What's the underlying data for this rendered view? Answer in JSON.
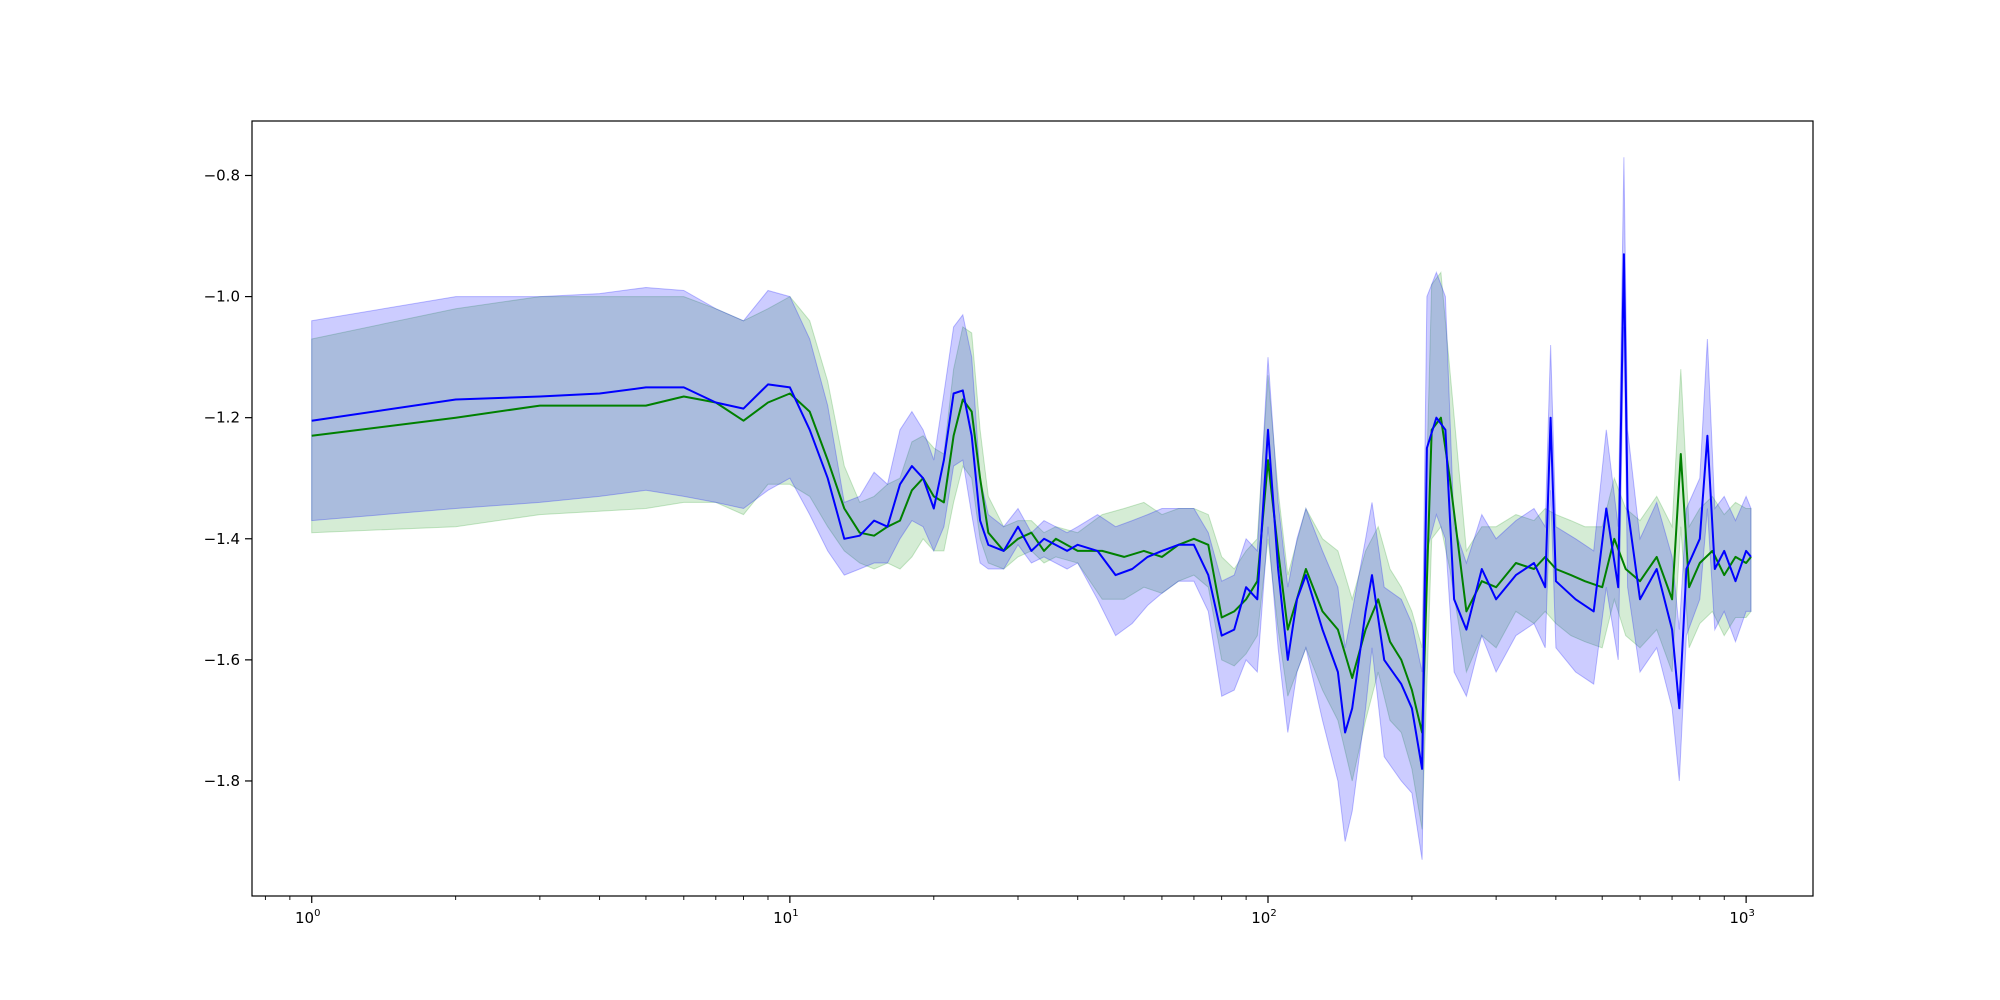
{
  "chart_data": {
    "type": "line",
    "title": "",
    "xlabel": "",
    "ylabel": "",
    "xscale": "log",
    "xlim": [
      0.75,
      1380
    ],
    "ylim": [
      -1.99,
      -0.71
    ],
    "grid": false,
    "legend": "none",
    "x_ticks": [
      {
        "base": "10",
        "exp": "0",
        "value": 1
      },
      {
        "base": "10",
        "exp": "1",
        "value": 10
      },
      {
        "base": "10",
        "exp": "2",
        "value": 100
      },
      {
        "base": "10",
        "exp": "3",
        "value": 1000
      }
    ],
    "y_ticks": [
      {
        "label": "−0.8",
        "value": -0.8
      },
      {
        "label": "−1.0",
        "value": -1.0
      },
      {
        "label": "−1.2",
        "value": -1.2
      },
      {
        "label": "−1.4",
        "value": -1.4
      },
      {
        "label": "−1.6",
        "value": -1.6
      },
      {
        "label": "−1.8",
        "value": -1.8
      }
    ],
    "series": [
      {
        "color": "#008000",
        "band_color": "#2ca02c",
        "points": [
          [
            1,
            -1.23,
            -1.39,
            -1.07
          ],
          [
            2,
            -1.2,
            -1.38,
            -1.02
          ],
          [
            3,
            -1.18,
            -1.36,
            -1.0
          ],
          [
            5,
            -1.18,
            -1.35,
            -1.0
          ],
          [
            6,
            -1.165,
            -1.34,
            -1.0
          ],
          [
            7,
            -1.175,
            -1.34,
            -1.02
          ],
          [
            8,
            -1.205,
            -1.36,
            -1.04
          ],
          [
            9,
            -1.175,
            -1.31,
            -1.02
          ],
          [
            10,
            -1.16,
            -1.31,
            -1.0
          ],
          [
            11,
            -1.19,
            -1.33,
            -1.04
          ],
          [
            12,
            -1.27,
            -1.38,
            -1.14
          ],
          [
            13,
            -1.35,
            -1.42,
            -1.28
          ],
          [
            14,
            -1.39,
            -1.44,
            -1.34
          ],
          [
            15,
            -1.395,
            -1.45,
            -1.33
          ],
          [
            16,
            -1.38,
            -1.44,
            -1.31
          ],
          [
            17,
            -1.37,
            -1.45,
            -1.3
          ],
          [
            18,
            -1.32,
            -1.43,
            -1.24
          ],
          [
            19,
            -1.3,
            -1.4,
            -1.23
          ],
          [
            20,
            -1.33,
            -1.42,
            -1.25
          ],
          [
            21,
            -1.34,
            -1.42,
            -1.26
          ],
          [
            22,
            -1.23,
            -1.34,
            -1.12
          ],
          [
            23,
            -1.17,
            -1.28,
            -1.05
          ],
          [
            24,
            -1.19,
            -1.3,
            -1.06
          ],
          [
            25,
            -1.3,
            -1.4,
            -1.22
          ],
          [
            26,
            -1.39,
            -1.44,
            -1.33
          ],
          [
            28,
            -1.42,
            -1.45,
            -1.38
          ],
          [
            30,
            -1.4,
            -1.43,
            -1.37
          ],
          [
            32,
            -1.39,
            -1.42,
            -1.37
          ],
          [
            34,
            -1.42,
            -1.44,
            -1.39
          ],
          [
            36,
            -1.4,
            -1.43,
            -1.38
          ],
          [
            40,
            -1.42,
            -1.44,
            -1.39
          ],
          [
            45,
            -1.42,
            -1.5,
            -1.36
          ],
          [
            50,
            -1.43,
            -1.5,
            -1.35
          ],
          [
            55,
            -1.42,
            -1.48,
            -1.34
          ],
          [
            60,
            -1.43,
            -1.49,
            -1.36
          ],
          [
            65,
            -1.41,
            -1.47,
            -1.35
          ],
          [
            70,
            -1.4,
            -1.46,
            -1.35
          ],
          [
            75,
            -1.41,
            -1.48,
            -1.36
          ],
          [
            80,
            -1.53,
            -1.6,
            -1.43
          ],
          [
            85,
            -1.52,
            -1.61,
            -1.45
          ],
          [
            90,
            -1.5,
            -1.59,
            -1.42
          ],
          [
            95,
            -1.47,
            -1.56,
            -1.4
          ],
          [
            100,
            -1.27,
            -1.4,
            -1.13
          ],
          [
            105,
            -1.42,
            -1.55,
            -1.32
          ],
          [
            110,
            -1.55,
            -1.66,
            -1.46
          ],
          [
            120,
            -1.45,
            -1.58,
            -1.35
          ],
          [
            130,
            -1.52,
            -1.65,
            -1.4
          ],
          [
            140,
            -1.55,
            -1.7,
            -1.42
          ],
          [
            150,
            -1.63,
            -1.8,
            -1.5
          ],
          [
            160,
            -1.55,
            -1.7,
            -1.42
          ],
          [
            170,
            -1.5,
            -1.62,
            -1.38
          ],
          [
            180,
            -1.57,
            -1.7,
            -1.45
          ],
          [
            190,
            -1.6,
            -1.72,
            -1.48
          ],
          [
            200,
            -1.65,
            -1.78,
            -1.52
          ],
          [
            210,
            -1.72,
            -1.88,
            -1.58
          ],
          [
            220,
            -1.22,
            -1.4,
            -0.98
          ],
          [
            230,
            -1.2,
            -1.38,
            -0.96
          ],
          [
            240,
            -1.3,
            -1.45,
            -1.12
          ],
          [
            260,
            -1.52,
            -1.62,
            -1.42
          ],
          [
            280,
            -1.47,
            -1.56,
            -1.38
          ],
          [
            300,
            -1.48,
            -1.58,
            -1.38
          ],
          [
            330,
            -1.44,
            -1.52,
            -1.36
          ],
          [
            360,
            -1.45,
            -1.54,
            -1.37
          ],
          [
            380,
            -1.43,
            -1.52,
            -1.35
          ],
          [
            400,
            -1.45,
            -1.54,
            -1.36
          ],
          [
            430,
            -1.46,
            -1.56,
            -1.37
          ],
          [
            460,
            -1.47,
            -1.57,
            -1.38
          ],
          [
            500,
            -1.48,
            -1.58,
            -1.38
          ],
          [
            530,
            -1.4,
            -1.5,
            -1.3
          ],
          [
            560,
            -1.45,
            -1.56,
            -1.35
          ],
          [
            600,
            -1.47,
            -1.58,
            -1.37
          ],
          [
            650,
            -1.43,
            -1.55,
            -1.33
          ],
          [
            700,
            -1.5,
            -1.62,
            -1.38
          ],
          [
            730,
            -1.26,
            -1.38,
            -1.12
          ],
          [
            760,
            -1.48,
            -1.58,
            -1.38
          ],
          [
            800,
            -1.44,
            -1.54,
            -1.35
          ],
          [
            850,
            -1.42,
            -1.52,
            -1.33
          ],
          [
            900,
            -1.46,
            -1.56,
            -1.36
          ],
          [
            950,
            -1.43,
            -1.53,
            -1.34
          ],
          [
            1000,
            -1.44,
            -1.53,
            -1.35
          ],
          [
            1024,
            -1.43,
            -1.52,
            -1.35
          ]
        ]
      },
      {
        "color": "#0000ff",
        "band_color": "#0000ff",
        "points": [
          [
            1,
            -1.205,
            -1.37,
            -1.04
          ],
          [
            2,
            -1.17,
            -1.35,
            -1.0
          ],
          [
            3,
            -1.165,
            -1.34,
            -1.0
          ],
          [
            4,
            -1.16,
            -1.33,
            -0.995
          ],
          [
            5,
            -1.15,
            -1.32,
            -0.985
          ],
          [
            6,
            -1.15,
            -1.33,
            -0.99
          ],
          [
            7,
            -1.175,
            -1.34,
            -1.02
          ],
          [
            8,
            -1.185,
            -1.35,
            -1.04
          ],
          [
            9,
            -1.145,
            -1.32,
            -0.99
          ],
          [
            10,
            -1.15,
            -1.3,
            -1.0
          ],
          [
            11,
            -1.22,
            -1.36,
            -1.07
          ],
          [
            12,
            -1.3,
            -1.42,
            -1.18
          ],
          [
            13,
            -1.4,
            -1.46,
            -1.34
          ],
          [
            14,
            -1.395,
            -1.45,
            -1.33
          ],
          [
            15,
            -1.37,
            -1.44,
            -1.29
          ],
          [
            16,
            -1.38,
            -1.44,
            -1.31
          ],
          [
            17,
            -1.31,
            -1.4,
            -1.22
          ],
          [
            18,
            -1.28,
            -1.37,
            -1.19
          ],
          [
            19,
            -1.3,
            -1.38,
            -1.22
          ],
          [
            20,
            -1.35,
            -1.42,
            -1.27
          ],
          [
            21,
            -1.27,
            -1.38,
            -1.16
          ],
          [
            22,
            -1.16,
            -1.28,
            -1.05
          ],
          [
            23,
            -1.155,
            -1.27,
            -1.03
          ],
          [
            24,
            -1.23,
            -1.36,
            -1.1
          ],
          [
            25,
            -1.37,
            -1.44,
            -1.3
          ],
          [
            26,
            -1.41,
            -1.45,
            -1.36
          ],
          [
            28,
            -1.42,
            -1.45,
            -1.38
          ],
          [
            30,
            -1.38,
            -1.41,
            -1.35
          ],
          [
            32,
            -1.42,
            -1.44,
            -1.39
          ],
          [
            34,
            -1.4,
            -1.43,
            -1.37
          ],
          [
            38,
            -1.42,
            -1.45,
            -1.39
          ],
          [
            40,
            -1.41,
            -1.44,
            -1.38
          ],
          [
            44,
            -1.42,
            -1.5,
            -1.36
          ],
          [
            48,
            -1.46,
            -1.56,
            -1.38
          ],
          [
            52,
            -1.45,
            -1.54,
            -1.37
          ],
          [
            56,
            -1.43,
            -1.51,
            -1.36
          ],
          [
            60,
            -1.42,
            -1.49,
            -1.35
          ],
          [
            65,
            -1.41,
            -1.47,
            -1.35
          ],
          [
            70,
            -1.41,
            -1.47,
            -1.35
          ],
          [
            75,
            -1.46,
            -1.52,
            -1.39
          ],
          [
            80,
            -1.56,
            -1.66,
            -1.47
          ],
          [
            85,
            -1.55,
            -1.65,
            -1.46
          ],
          [
            90,
            -1.48,
            -1.6,
            -1.4
          ],
          [
            95,
            -1.5,
            -1.62,
            -1.42
          ],
          [
            100,
            -1.22,
            -1.38,
            -1.1
          ],
          [
            105,
            -1.45,
            -1.58,
            -1.34
          ],
          [
            110,
            -1.6,
            -1.72,
            -1.48
          ],
          [
            115,
            -1.5,
            -1.62,
            -1.4
          ],
          [
            120,
            -1.46,
            -1.58,
            -1.35
          ],
          [
            130,
            -1.55,
            -1.7,
            -1.42
          ],
          [
            140,
            -1.62,
            -1.8,
            -1.48
          ],
          [
            145,
            -1.72,
            -1.9,
            -1.58
          ],
          [
            150,
            -1.68,
            -1.85,
            -1.52
          ],
          [
            160,
            -1.52,
            -1.68,
            -1.4
          ],
          [
            165,
            -1.46,
            -1.58,
            -1.34
          ],
          [
            175,
            -1.6,
            -1.76,
            -1.48
          ],
          [
            190,
            -1.64,
            -1.8,
            -1.5
          ],
          [
            200,
            -1.68,
            -1.82,
            -1.54
          ],
          [
            210,
            -1.78,
            -1.93,
            -1.62
          ],
          [
            215,
            -1.25,
            -1.42,
            -1.0
          ],
          [
            225,
            -1.2,
            -1.36,
            -0.96
          ],
          [
            235,
            -1.22,
            -1.4,
            -1.0
          ],
          [
            245,
            -1.5,
            -1.62,
            -1.38
          ],
          [
            260,
            -1.55,
            -1.66,
            -1.44
          ],
          [
            280,
            -1.45,
            -1.56,
            -1.36
          ],
          [
            300,
            -1.5,
            -1.62,
            -1.4
          ],
          [
            330,
            -1.46,
            -1.56,
            -1.37
          ],
          [
            360,
            -1.44,
            -1.54,
            -1.35
          ],
          [
            380,
            -1.48,
            -1.58,
            -1.38
          ],
          [
            390,
            -1.2,
            -1.32,
            -1.08
          ],
          [
            400,
            -1.47,
            -1.58,
            -1.38
          ],
          [
            440,
            -1.5,
            -1.62,
            -1.4
          ],
          [
            480,
            -1.52,
            -1.64,
            -1.42
          ],
          [
            510,
            -1.35,
            -1.48,
            -1.22
          ],
          [
            540,
            -1.48,
            -1.6,
            -1.38
          ],
          [
            555,
            -0.93,
            -1.05,
            -0.77
          ],
          [
            565,
            -1.35,
            -1.48,
            -1.22
          ],
          [
            600,
            -1.5,
            -1.62,
            -1.4
          ],
          [
            650,
            -1.45,
            -1.58,
            -1.34
          ],
          [
            700,
            -1.55,
            -1.68,
            -1.43
          ],
          [
            725,
            -1.68,
            -1.8,
            -1.55
          ],
          [
            750,
            -1.45,
            -1.56,
            -1.35
          ],
          [
            800,
            -1.4,
            -1.5,
            -1.3
          ],
          [
            830,
            -1.23,
            -1.35,
            -1.07
          ],
          [
            860,
            -1.45,
            -1.55,
            -1.35
          ],
          [
            900,
            -1.42,
            -1.52,
            -1.33
          ],
          [
            950,
            -1.47,
            -1.57,
            -1.37
          ],
          [
            1000,
            -1.42,
            -1.52,
            -1.33
          ],
          [
            1024,
            -1.43,
            -1.52,
            -1.35
          ]
        ]
      }
    ]
  }
}
